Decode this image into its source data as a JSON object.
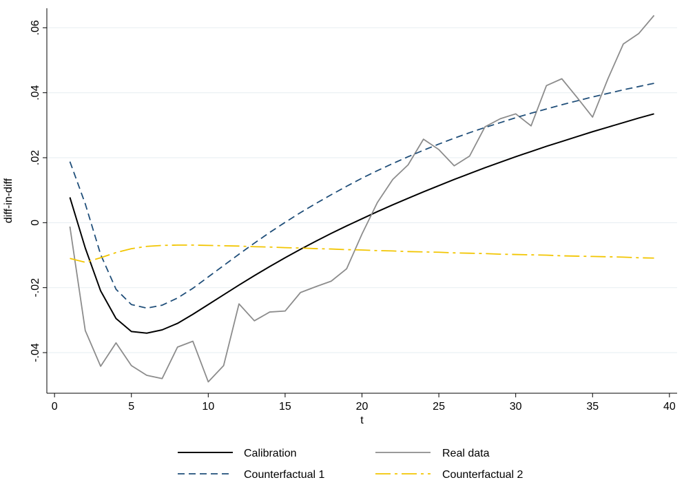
{
  "chart_data": {
    "type": "line",
    "title": "",
    "xlabel": "t",
    "ylabel": "diff-in-diff",
    "xlim": [
      -0.5,
      40.5
    ],
    "ylim": [
      -0.0525,
      0.066
    ],
    "x_ticks": [
      0,
      5,
      10,
      15,
      20,
      25,
      30,
      35,
      40
    ],
    "x_tick_labels": [
      "0",
      "5",
      "10",
      "15",
      "20",
      "25",
      "30",
      "35",
      "40"
    ],
    "y_ticks": [
      -0.04,
      -0.02,
      0,
      0.02,
      0.04,
      0.06
    ],
    "y_tick_labels": [
      "-.04",
      "-.02",
      "0",
      ".02",
      ".04",
      ".06"
    ],
    "grid": "horizontal",
    "legend_position": "bottom",
    "x": [
      1,
      2,
      3,
      4,
      5,
      6,
      7,
      8,
      9,
      10,
      11,
      12,
      13,
      14,
      15,
      16,
      17,
      18,
      19,
      20,
      21,
      22,
      23,
      24,
      25,
      26,
      27,
      28,
      29,
      30,
      31,
      32,
      33,
      34,
      35,
      36,
      37,
      38,
      39
    ],
    "series": [
      {
        "name": "Calibration",
        "color": "#000000",
        "dash": "solid",
        "values": [
          0.0078,
          -0.0078,
          -0.021,
          -0.0295,
          -0.0335,
          -0.034,
          -0.033,
          -0.031,
          -0.0282,
          -0.0252,
          -0.0222,
          -0.0192,
          -0.0163,
          -0.0135,
          -0.0108,
          -0.0082,
          -0.0057,
          -0.0033,
          -0.001,
          0.0012,
          0.0034,
          0.0055,
          0.0075,
          0.0095,
          0.0114,
          0.0133,
          0.0151,
          0.0169,
          0.0186,
          0.0203,
          0.0219,
          0.0235,
          0.025,
          0.0265,
          0.028,
          0.0294,
          0.0308,
          0.0322,
          0.0335
        ]
      },
      {
        "name": "Real data",
        "color": "#8c8c8c",
        "dash": "solid",
        "values": [
          -0.0012,
          -0.0332,
          -0.0442,
          -0.037,
          -0.044,
          -0.047,
          -0.048,
          -0.0383,
          -0.0365,
          -0.049,
          -0.044,
          -0.025,
          -0.0302,
          -0.0275,
          -0.0272,
          -0.0215,
          -0.0197,
          -0.018,
          -0.0142,
          -0.0035,
          0.0062,
          0.0133,
          0.0178,
          0.0257,
          0.0225,
          0.0175,
          0.0205,
          0.0295,
          0.032,
          0.0335,
          0.0298,
          0.0422,
          0.0443,
          0.0385,
          0.0325,
          0.0443,
          0.055,
          0.0582,
          0.0638
        ]
      },
      {
        "name": "Counterfactual 1",
        "color": "#1f4e79",
        "dash": "10,6",
        "values": [
          0.0188,
          0.0058,
          -0.0098,
          -0.0205,
          -0.0252,
          -0.0263,
          -0.0254,
          -0.0232,
          -0.0202,
          -0.0167,
          -0.0132,
          -0.0097,
          -0.0063,
          -0.003,
          0.0001,
          0.0031,
          0.0059,
          0.0086,
          0.0112,
          0.0137,
          0.016,
          0.0182,
          0.0203,
          0.0223,
          0.0242,
          0.026,
          0.0277,
          0.0293,
          0.0308,
          0.0323,
          0.0337,
          0.035,
          0.0363,
          0.0375,
          0.0387,
          0.0398,
          0.0409,
          0.0419,
          0.0429
        ]
      },
      {
        "name": "Counterfactual 2",
        "color": "#f2c500",
        "dash": "22,6,4,6",
        "values": [
          -0.011,
          -0.0122,
          -0.0108,
          -0.0092,
          -0.008,
          -0.0073,
          -0.007,
          -0.0069,
          -0.0069,
          -0.007,
          -0.0071,
          -0.0072,
          -0.0074,
          -0.0075,
          -0.0077,
          -0.0078,
          -0.008,
          -0.0081,
          -0.0083,
          -0.0084,
          -0.0086,
          -0.0087,
          -0.0089,
          -0.009,
          -0.0091,
          -0.0093,
          -0.0094,
          -0.0095,
          -0.0097,
          -0.0098,
          -0.0099,
          -0.01,
          -0.0102,
          -0.0103,
          -0.0104,
          -0.0105,
          -0.0106,
          -0.0108,
          -0.0109
        ]
      }
    ]
  }
}
